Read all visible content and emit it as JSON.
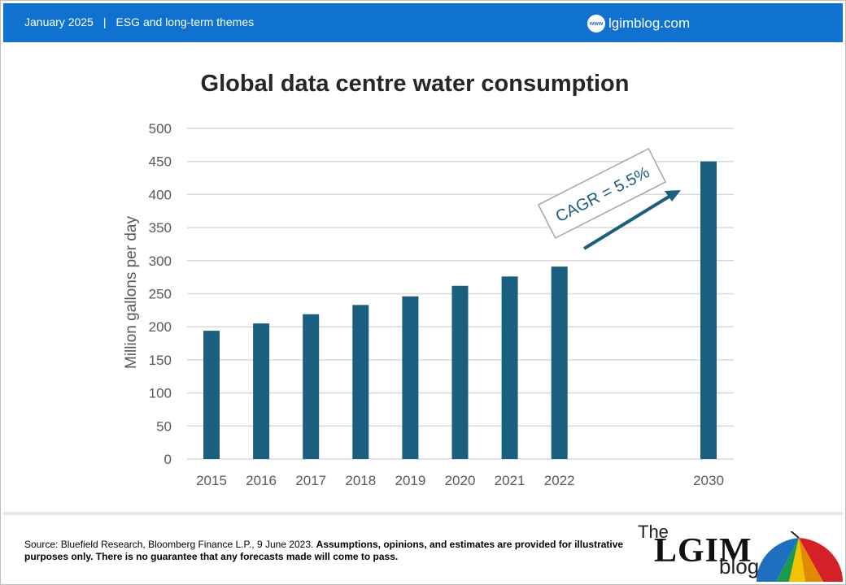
{
  "header": {
    "date": "January 2025",
    "separator": "|",
    "theme": "ESG and long-term themes",
    "icon": "www-globe-icon",
    "icon_text": "www",
    "site": "lgimblog.com"
  },
  "chart_data": {
    "type": "bar",
    "title": "Global data centre water consumption",
    "xlabel": "",
    "ylabel": "Million gallons per day",
    "categories": [
      "2015",
      "2016",
      "2017",
      "2018",
      "2019",
      "2020",
      "2021",
      "2022",
      "2030"
    ],
    "values": [
      194,
      205,
      219,
      233,
      246,
      262,
      276,
      291,
      450
    ],
    "ylim": [
      0,
      500
    ],
    "yticks": [
      0,
      50,
      100,
      150,
      200,
      250,
      300,
      350,
      400,
      450,
      500
    ],
    "grid": true,
    "bar_color": "#1a5e80",
    "annotation": "CAGR = 5.5%"
  },
  "footer": {
    "source_plain": "Source: Bluefield Research, Bloomberg Finance L.P., 9 June 2023. ",
    "source_bold": "Assumptions, opinions, and estimates are provided for illustrative purposes only. There is no guarantee that any forecasts made will come to pass.",
    "logo": {
      "the": "The",
      "lgim": "LGIM",
      "blog": "blog"
    }
  },
  "colors": {
    "header_bg": "#0f72d1",
    "bar": "#1a5e80",
    "arrow": "#1a5e80",
    "grid": "#d9d9d9",
    "axis_text": "#595959"
  }
}
